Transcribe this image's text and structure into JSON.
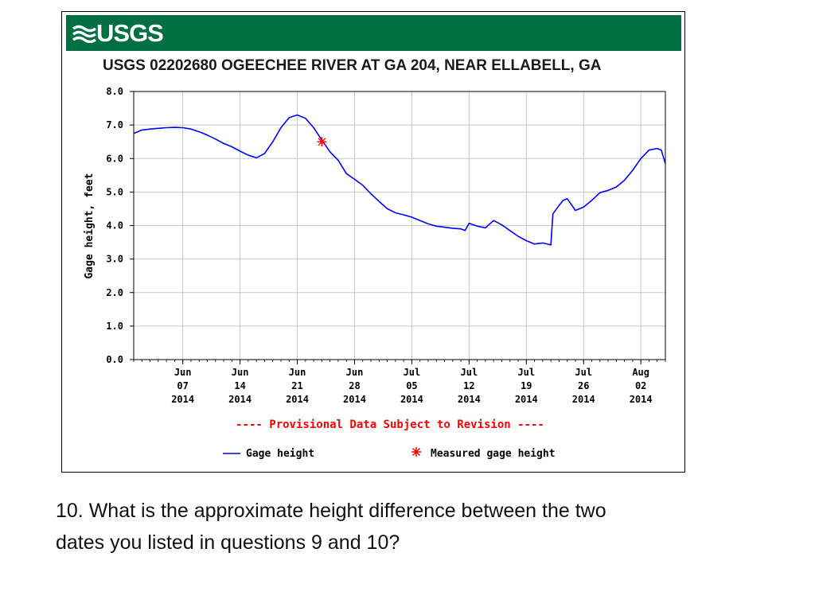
{
  "banner": {
    "logo_text": "USGS",
    "color": "#006f41"
  },
  "station_title": "USGS 02202680 OGEECHEE RIVER AT GA 204, NEAR ELLABELL, GA",
  "chart_data": {
    "type": "line",
    "x_type": "date",
    "ylabel": "Gage height, feet",
    "ylim": [
      0.0,
      8.0
    ],
    "y_ticks": [
      "0.0",
      "1.0",
      "2.0",
      "3.0",
      "4.0",
      "5.0",
      "6.0",
      "7.0",
      "8.0"
    ],
    "xlim": [
      "2014-06-01",
      "2014-08-05"
    ],
    "x_ticks": [
      {
        "date": "2014-06-07",
        "label": [
          "Jun",
          "07",
          "2014"
        ]
      },
      {
        "date": "2014-06-14",
        "label": [
          "Jun",
          "14",
          "2014"
        ]
      },
      {
        "date": "2014-06-21",
        "label": [
          "Jun",
          "21",
          "2014"
        ]
      },
      {
        "date": "2014-06-28",
        "label": [
          "Jun",
          "28",
          "2014"
        ]
      },
      {
        "date": "2014-07-05",
        "label": [
          "Jul",
          "05",
          "2014"
        ]
      },
      {
        "date": "2014-07-12",
        "label": [
          "Jul",
          "12",
          "2014"
        ]
      },
      {
        "date": "2014-07-19",
        "label": [
          "Jul",
          "19",
          "2014"
        ]
      },
      {
        "date": "2014-07-26",
        "label": [
          "Jul",
          "26",
          "2014"
        ]
      },
      {
        "date": "2014-08-02",
        "label": [
          "Aug",
          "02",
          "2014"
        ]
      }
    ],
    "grid": true,
    "notice": "---- Provisional Data Subject to Revision ----",
    "series": [
      {
        "name": "Gage height",
        "color": "#0000ff",
        "points": [
          [
            "2014-06-01",
            6.75
          ],
          [
            "2014-06-01T12:00",
            6.8
          ],
          [
            "2014-06-02",
            6.85
          ],
          [
            "2014-06-03",
            6.88
          ],
          [
            "2014-06-04",
            6.9
          ],
          [
            "2014-06-05",
            6.92
          ],
          [
            "2014-06-06",
            6.93
          ],
          [
            "2014-06-07",
            6.92
          ],
          [
            "2014-06-08",
            6.88
          ],
          [
            "2014-06-09",
            6.8
          ],
          [
            "2014-06-10",
            6.7
          ],
          [
            "2014-06-11",
            6.58
          ],
          [
            "2014-06-12",
            6.45
          ],
          [
            "2014-06-13",
            6.35
          ],
          [
            "2014-06-14",
            6.22
          ],
          [
            "2014-06-15",
            6.1
          ],
          [
            "2014-06-16",
            6.02
          ],
          [
            "2014-06-17",
            6.15
          ],
          [
            "2014-06-18",
            6.5
          ],
          [
            "2014-06-19",
            6.92
          ],
          [
            "2014-06-20",
            7.22
          ],
          [
            "2014-06-21",
            7.3
          ],
          [
            "2014-06-22",
            7.2
          ],
          [
            "2014-06-23",
            6.92
          ],
          [
            "2014-06-24",
            6.55
          ],
          [
            "2014-06-25",
            6.2
          ],
          [
            "2014-06-26",
            5.95
          ],
          [
            "2014-06-27",
            5.55
          ],
          [
            "2014-06-28",
            5.38
          ],
          [
            "2014-06-29",
            5.2
          ],
          [
            "2014-06-30",
            4.95
          ],
          [
            "2014-07-01",
            4.72
          ],
          [
            "2014-07-02",
            4.5
          ],
          [
            "2014-07-03",
            4.38
          ],
          [
            "2014-07-04",
            4.32
          ],
          [
            "2014-07-05",
            4.25
          ],
          [
            "2014-07-06",
            4.15
          ],
          [
            "2014-07-07",
            4.05
          ],
          [
            "2014-07-08",
            3.98
          ],
          [
            "2014-07-09",
            3.95
          ],
          [
            "2014-07-10",
            3.92
          ],
          [
            "2014-07-11",
            3.9
          ],
          [
            "2014-07-11T12:00",
            3.85
          ],
          [
            "2014-07-12",
            4.07
          ],
          [
            "2014-07-13",
            3.98
          ],
          [
            "2014-07-14",
            3.93
          ],
          [
            "2014-07-15",
            4.15
          ],
          [
            "2014-07-16",
            4.02
          ],
          [
            "2014-07-17",
            3.85
          ],
          [
            "2014-07-18",
            3.68
          ],
          [
            "2014-07-19",
            3.55
          ],
          [
            "2014-07-20",
            3.45
          ],
          [
            "2014-07-21",
            3.48
          ],
          [
            "2014-07-22",
            3.42
          ],
          [
            "2014-07-22T06:00",
            4.35
          ],
          [
            "2014-07-23",
            4.6
          ],
          [
            "2014-07-23T12:00",
            4.75
          ],
          [
            "2014-07-24",
            4.8
          ],
          [
            "2014-07-25",
            4.45
          ],
          [
            "2014-07-26",
            4.55
          ],
          [
            "2014-07-27",
            4.75
          ],
          [
            "2014-07-28",
            4.98
          ],
          [
            "2014-07-29",
            5.05
          ],
          [
            "2014-07-30",
            5.15
          ],
          [
            "2014-07-31",
            5.35
          ],
          [
            "2014-08-01",
            5.65
          ],
          [
            "2014-08-02",
            6.0
          ],
          [
            "2014-08-03",
            6.25
          ],
          [
            "2014-08-04",
            6.3
          ],
          [
            "2014-08-04T12:00",
            6.25
          ],
          [
            "2014-08-05",
            5.85
          ]
        ]
      },
      {
        "name": "Measured gage height",
        "color": "#ff0000",
        "marker": "asterisk",
        "points": [
          [
            "2014-06-24",
            6.5
          ]
        ]
      }
    ],
    "legend": {
      "placement": "bottom",
      "items": [
        {
          "label": "Gage height",
          "symbol": "line",
          "color": "#0000ff"
        },
        {
          "label": "Measured gage height",
          "symbol": "asterisk",
          "color": "#ff0000"
        }
      ]
    }
  },
  "question": {
    "line1": "10. What is the approximate height difference between the two",
    "line2": "dates you listed in questions 9 and 10?"
  }
}
